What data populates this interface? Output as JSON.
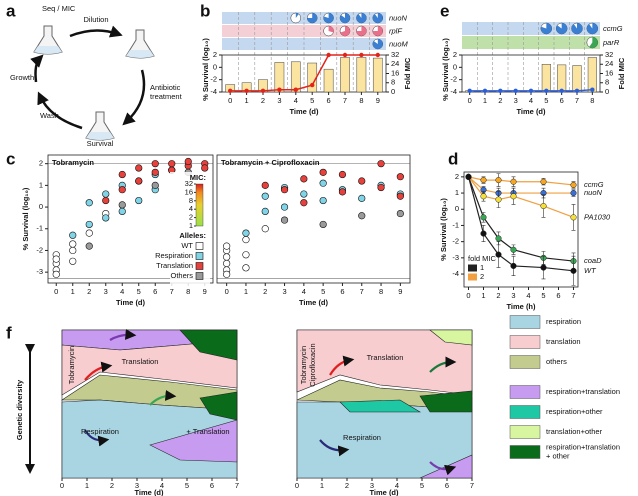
{
  "panel_a": {
    "label": "a",
    "seq": "Seq / MIC",
    "dilution": "Dilution",
    "antibiotic": [
      "Antibiotic",
      "treatment"
    ],
    "survival": "Survival",
    "wash": "Wash",
    "growth": "Growth"
  },
  "chart_data": [
    {
      "type": "combo",
      "label": "b",
      "x_label": "Time (d)",
      "y_label": "% Survival (log₁₀)",
      "y2_label": "Fold MIC",
      "x": [
        0,
        1,
        2,
        3,
        4,
        5,
        6,
        7,
        8,
        9
      ],
      "xlim": [
        -0.5,
        9.5
      ],
      "xticks": [
        0,
        1,
        2,
        3,
        4,
        5,
        6,
        7,
        8,
        9
      ],
      "ylim": [
        -4,
        2
      ],
      "yticks": [
        -4,
        -2,
        0,
        2
      ],
      "y2lim": [
        0,
        32
      ],
      "y2ticks": [
        0,
        8,
        16,
        24,
        32
      ],
      "rows": [
        {
          "name": "nuoN",
          "color": "#c4d8f0",
          "pie_color": "#3a7fd2",
          "days": [
            4,
            5,
            6,
            7,
            8,
            9
          ],
          "fractions": [
            0.1,
            0.75,
            0.8,
            0.85,
            0.9,
            0.9
          ]
        },
        {
          "name": "rplF",
          "color": "#f4cfd6",
          "pie_color": "#e8708a",
          "days": [
            6,
            7,
            8,
            9
          ],
          "fractions": [
            0.3,
            0.7,
            0.75,
            0.75
          ]
        },
        {
          "name": "nuoM",
          "color": "#c4d8f0",
          "pie_color": "#3a7fd2",
          "days": [
            9
          ],
          "fractions": [
            0.85
          ]
        }
      ],
      "series": [
        {
          "values": [
            -2.8,
            -2.5,
            -2.0,
            0.8,
            0.9,
            0.7,
            -0.3,
            1.6,
            1.6,
            1.5
          ],
          "color": "#fbe3a0"
        },
        {
          "values": [
            1,
            1,
            1,
            2,
            2,
            6,
            32,
            32,
            32,
            32
          ],
          "color": "#e3241b",
          "axis": "y2"
        }
      ]
    },
    {
      "type": "scatter",
      "label": "c",
      "title": "Tobramycin",
      "x_label": "Time (d)",
      "y_label": "% Survival (log₁₀)",
      "xlim": [
        -0.5,
        9.5
      ],
      "xticks": [
        0,
        1,
        2,
        3,
        4,
        5,
        6,
        7,
        8,
        9
      ],
      "ylim": [
        -3.5,
        2.4
      ],
      "yticks": [
        -3,
        -2,
        -1,
        0,
        1,
        2
      ],
      "reference_lines": [
        2,
        -3.3
      ],
      "colorbar": {
        "title": "MIC:",
        "ticks": [
          1,
          2,
          4,
          8,
          16,
          32
        ]
      },
      "legend_title": "Alleles:",
      "series": [
        {
          "name": "WT",
          "color": "#ffffff",
          "x": [
            0,
            0,
            0,
            0,
            0,
            1,
            1,
            1,
            2,
            3
          ],
          "y": [
            -2.2,
            -2.6,
            -2.9,
            -3.1,
            -2.4,
            -2.0,
            -2.5,
            -1.7,
            -1.2,
            -0.3
          ]
        },
        {
          "name": "Respiration",
          "color": "#7fd4e8",
          "x": [
            1,
            2,
            2,
            3,
            3,
            4,
            4,
            5,
            5,
            6,
            6,
            7
          ],
          "y": [
            -1.3,
            -0.8,
            0.2,
            -0.5,
            0.6,
            -0.2,
            1.0,
            0.3,
            1.2,
            0.8,
            1.5,
            1.7
          ]
        },
        {
          "name": "Translation",
          "color": "#e8413c",
          "x": [
            3,
            4,
            4,
            5,
            5,
            6,
            6,
            7,
            7,
            8,
            8,
            9,
            9
          ],
          "y": [
            0.3,
            0.8,
            1.5,
            1.2,
            1.8,
            1.6,
            2.0,
            1.7,
            2.0,
            1.9,
            2.1,
            2.0,
            1.8
          ]
        },
        {
          "name": "Others",
          "color": "#9a9a9a",
          "x": [
            2,
            4,
            6,
            8
          ],
          "y": [
            -1.8,
            0.1,
            1.0,
            1.6
          ]
        }
      ]
    },
    {
      "type": "scatter",
      "title": "Tobramycin + Ciprofloxacin",
      "x_label": "Time (d)",
      "xlim": [
        -0.5,
        9.5
      ],
      "xticks": [
        0,
        1,
        2,
        3,
        4,
        5,
        6,
        7,
        8,
        9
      ],
      "ylim": [
        -3.5,
        2.4
      ],
      "reference_lines": [
        2,
        -3.3
      ],
      "series": [
        {
          "color": "#ffffff",
          "x": [
            0,
            0,
            0,
            0,
            0,
            0,
            1,
            1,
            1,
            2
          ],
          "y": [
            -2.0,
            -2.3,
            -2.6,
            -2.9,
            -3.1,
            -1.8,
            -1.5,
            -2.2,
            -2.8,
            -1.0
          ]
        },
        {
          "color": "#7fd4e8",
          "x": [
            1,
            2,
            2,
            3,
            3,
            4,
            5,
            5,
            6,
            7,
            8,
            9
          ],
          "y": [
            -1.2,
            -0.2,
            0.5,
            0.0,
            0.9,
            0.6,
            0.3,
            1.1,
            0.8,
            0.4,
            1.0,
            0.6
          ]
        },
        {
          "color": "#e8413c",
          "x": [
            2,
            3,
            4,
            4,
            5,
            6,
            6,
            7,
            8,
            8,
            9,
            9
          ],
          "y": [
            1.0,
            0.8,
            0.2,
            1.3,
            1.6,
            0.7,
            1.5,
            1.2,
            2.0,
            0.9,
            1.4,
            0.5
          ]
        },
        {
          "color": "#9a9a9a",
          "x": [
            3,
            5,
            7,
            9
          ],
          "y": [
            -0.6,
            -0.8,
            -0.4,
            -0.3
          ]
        }
      ]
    },
    {
      "type": "line",
      "label": "d",
      "x_label": "Time (h)",
      "y_label": "% Survival (log₁₀)",
      "xlim": [
        -0.3,
        7.3
      ],
      "xticks": [
        0,
        1,
        2,
        3,
        4,
        5,
        6,
        7
      ],
      "ylim": [
        -4.8,
        2.3
      ],
      "yticks": [
        -4,
        -3,
        -2,
        -1,
        0,
        1,
        2
      ],
      "legend": {
        "title": "fold MIC",
        "entries": [
          {
            "value": 1,
            "color": "#222222"
          },
          {
            "value": 2,
            "color": "#f0a040"
          }
        ]
      },
      "x": [
        0,
        1,
        2,
        3,
        5,
        7
      ],
      "series": [
        {
          "name": "ccmG",
          "color": "#f5a623",
          "fold_mic": 2,
          "values": [
            2,
            1.8,
            1.8,
            1.7,
            1.7,
            1.5
          ],
          "errors": [
            0.1,
            0.2,
            0.4,
            0.3,
            0.2,
            0.2
          ]
        },
        {
          "name": "nuoN",
          "color": "#3a6fd8",
          "fold_mic": 2,
          "values": [
            2,
            1.2,
            1.0,
            1.0,
            1.0,
            1.0
          ],
          "errors": [
            0.1,
            0.2,
            0.3,
            0.3,
            0.3,
            0.2
          ]
        },
        {
          "name": "PA1030",
          "color": "#f5e03a",
          "fold_mic": 2,
          "values": [
            2,
            0.8,
            0.6,
            0.8,
            0.2,
            -0.5
          ],
          "errors": [
            0.1,
            0.3,
            0.5,
            0.5,
            0.7,
            0.8
          ]
        },
        {
          "name": "coaD",
          "color": "#3aa655",
          "fold_mic": 1,
          "values": [
            2,
            -0.5,
            -1.8,
            -2.5,
            -3.0,
            -3.2
          ],
          "errors": [
            0.1,
            0.3,
            0.4,
            0.3,
            0.4,
            0.5
          ]
        },
        {
          "name": "WT",
          "color": "#111111",
          "fold_mic": 1,
          "values": [
            2,
            -1.5,
            -2.8,
            -3.5,
            -3.6,
            -3.8
          ],
          "errors": [
            0.1,
            0.5,
            0.8,
            0.6,
            0.7,
            0.9
          ]
        }
      ]
    },
    {
      "type": "combo",
      "label": "e",
      "x_label": "Time (d)",
      "y_label": "% Survival (log₁₀)",
      "y2_label": "Fold MIC",
      "x": [
        0,
        1,
        2,
        3,
        4,
        5,
        6,
        7,
        8
      ],
      "xlim": [
        -0.5,
        8.5
      ],
      "xticks": [
        0,
        1,
        2,
        3,
        4,
        5,
        6,
        7,
        8
      ],
      "ylim": [
        -4,
        2
      ],
      "yticks": [
        -4,
        -2,
        0,
        2
      ],
      "y2lim": [
        0,
        32
      ],
      "y2ticks": [
        0,
        8,
        16,
        24,
        32
      ],
      "rows": [
        {
          "name": "ccmG",
          "color": "#c4d8f0",
          "pie_color": "#3a7fd2",
          "days": [
            5,
            6,
            7,
            8
          ],
          "fractions": [
            0.8,
            0.85,
            0.9,
            0.9
          ]
        },
        {
          "name": "parR",
          "color": "#bfe0a8",
          "pie_color": "#3aa655",
          "days": [
            8
          ],
          "fractions": [
            0.6
          ]
        }
      ],
      "series": [
        {
          "values": [
            -3.8,
            -3.8,
            -3.8,
            -3.8,
            -3.8,
            0.5,
            0.4,
            0.3,
            1.6
          ],
          "color": "#fbe3a0"
        },
        {
          "values": [
            1,
            1,
            1,
            1,
            1,
            1,
            1,
            1,
            2
          ],
          "color": "#2b5fd9",
          "axis": "y2"
        }
      ]
    }
  ],
  "panel_f": {
    "label": "f",
    "y_label": "Genetic diversity",
    "x_label": "Time (d)",
    "xticks": [
      0,
      1,
      2,
      3,
      4,
      5,
      6,
      7
    ],
    "left": {
      "title": "Tobramycin",
      "regions": [
        "Translation",
        "Respiration",
        "+ Translation"
      ]
    },
    "right": {
      "title_lines": [
        "Tobramycin",
        "Ciprofloxacin"
      ],
      "regions": [
        "Translation",
        "Respiration"
      ]
    },
    "legend": [
      {
        "label_lines": [
          "respiration"
        ],
        "color": "#a9d5e3"
      },
      {
        "label_lines": [
          "translation"
        ],
        "color": "#f8cdd0"
      },
      {
        "label_lines": [
          "others"
        ],
        "color": "#c3cc8e"
      },
      {
        "label_lines": [
          "respiration+translation"
        ],
        "color": "#c79bf0"
      },
      {
        "label_lines": [
          "respiration+other"
        ],
        "color": "#1ec8a5"
      },
      {
        "label_lines": [
          "translation+other"
        ],
        "color": "#d8f5a0"
      },
      {
        "label_lines": [
          "respiration+translation",
          "+ other"
        ],
        "color": "#0a6b1a"
      }
    ]
  }
}
